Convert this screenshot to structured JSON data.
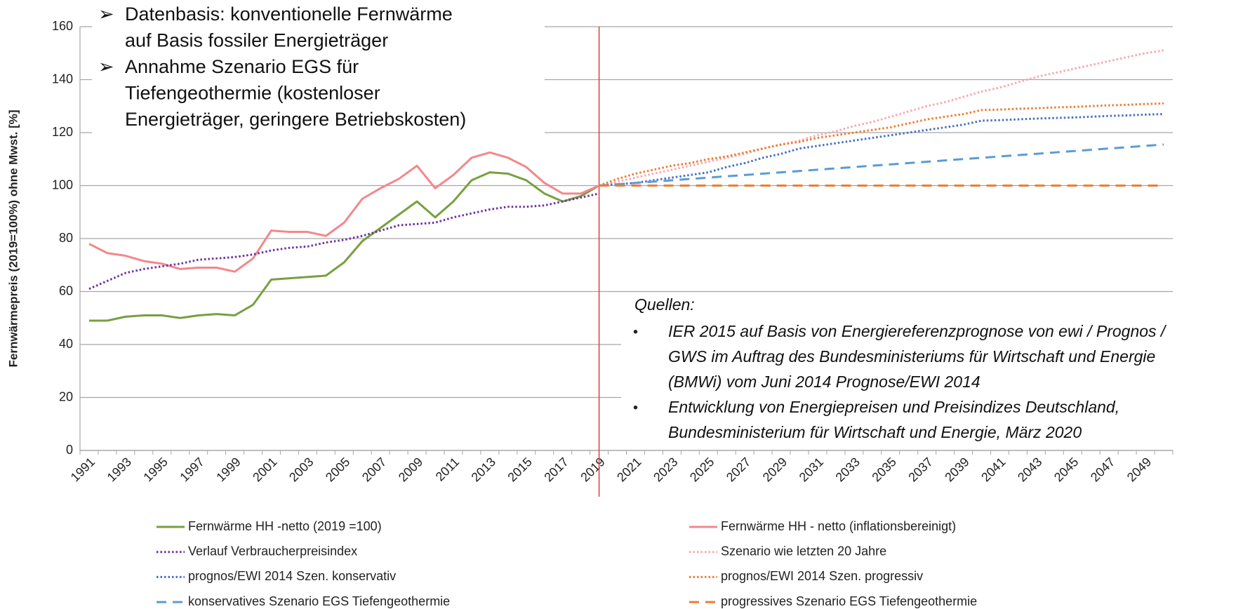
{
  "chart_data": {
    "type": "line",
    "y_label": "Fernwärmepreis (2019=100%) ohne Mwst. [%]",
    "annotation": {
      "bullets": [
        [
          "Datenbasis: konventionelle Fernwärme",
          "auf Basis fossiler Energieträger"
        ],
        [
          "Annahme Szenario EGS für",
          "Tiefengeothermie (kostenloser",
          "Energieträger, geringere Betriebskosten)"
        ]
      ]
    },
    "sources": {
      "title": "Quellen:",
      "items": [
        [
          "IER 2015 auf Basis von Energiereferenzprognose von ewi / Prognos /",
          "GWS im Auftrag des Bundesministeriums für Wirtschaft und Energie",
          "(BMWi) vom Juni 2014 Prognose/EWI 2014"
        ],
        [
          "Entwicklung von Energiepreisen und Preisindizes Deutschland,",
          "Bundesministerium für Wirtschaft und Energie, März 2020"
        ]
      ]
    },
    "categories": [
      "1991",
      null,
      "1993",
      null,
      "1995",
      null,
      "1997",
      null,
      "1999",
      null,
      "2001",
      null,
      "2003",
      null,
      "2005",
      null,
      "2007",
      null,
      "2009",
      null,
      "2011",
      null,
      "2013",
      null,
      "2015",
      null,
      "2017",
      null,
      "2019",
      null,
      "2021",
      null,
      "2023",
      null,
      "2025",
      null,
      "2027",
      null,
      "2029",
      null,
      "2031",
      null,
      "2033",
      null,
      "2035",
      null,
      "2037",
      null,
      "2039",
      null,
      "2041",
      null,
      "2043",
      null,
      "2045",
      null,
      "2047",
      null,
      "2049",
      null
    ],
    "reference_line": "2019",
    "ylim": [
      0,
      160
    ],
    "yticks": [
      0,
      20,
      40,
      60,
      80,
      100,
      120,
      140,
      160
    ],
    "grid": true,
    "series": [
      {
        "name": "Fernwärme HH -netto (2019 =100)",
        "color": "#77a03f",
        "style": "solid",
        "values": [
          49,
          49,
          50.5,
          51,
          51,
          50,
          51,
          51.5,
          51,
          55,
          64.5,
          65,
          65.5,
          66,
          71,
          79,
          84,
          89,
          94,
          88,
          94,
          102,
          105,
          104.5,
          102,
          97,
          94,
          96,
          100,
          null,
          null,
          null,
          null,
          null,
          null,
          null,
          null,
          null,
          null,
          null,
          null,
          null,
          null,
          null,
          null,
          null,
          null,
          null,
          null,
          null,
          null,
          null,
          null,
          null,
          null,
          null,
          null,
          null,
          null,
          null
        ]
      },
      {
        "name": "Fernwärme HH  - netto (inflationsbereinigt)",
        "color": "#f4878a",
        "style": "solid",
        "values": [
          78,
          74.5,
          73.5,
          71.5,
          70.5,
          68.5,
          69,
          69,
          67.5,
          72.5,
          83,
          82.5,
          82.5,
          81,
          86,
          95,
          99,
          102.5,
          107.5,
          99,
          104,
          110.5,
          112.5,
          110.5,
          107,
          101,
          97,
          97,
          100,
          null,
          null,
          null,
          null,
          null,
          null,
          null,
          null,
          null,
          null,
          null,
          null,
          null,
          null,
          null,
          null,
          null,
          null,
          null,
          null,
          null,
          null,
          null,
          null,
          null,
          null,
          null,
          null,
          null,
          null,
          null
        ]
      },
      {
        "name": "Verlauf Verbraucherpreisindex",
        "color": "#7030a0",
        "style": "dotted",
        "values": [
          61,
          64,
          67,
          68.5,
          69.5,
          70.5,
          72,
          72.5,
          73,
          74,
          75.5,
          76.5,
          77,
          78.5,
          79.5,
          81,
          83,
          85,
          85.5,
          86,
          88,
          89.5,
          91,
          92,
          92,
          92.5,
          94,
          95.5,
          97,
          null,
          null,
          null,
          null,
          null,
          null,
          null,
          null,
          null,
          null,
          null,
          null,
          null,
          null,
          null,
          null,
          null,
          null,
          null,
          null,
          null,
          null,
          null,
          null,
          null,
          null,
          null,
          null,
          null,
          null,
          null
        ]
      },
      {
        "name": "Szenario wie letzten 20 Jahre",
        "color": "#f7a8b4",
        "style": "dotted",
        "values": [
          null,
          null,
          null,
          null,
          null,
          null,
          null,
          null,
          null,
          null,
          null,
          null,
          null,
          null,
          null,
          null,
          null,
          null,
          null,
          null,
          null,
          null,
          null,
          null,
          null,
          null,
          null,
          null,
          100,
          101.5,
          103,
          104.5,
          106,
          107.5,
          109,
          110.5,
          112,
          114,
          115.5,
          117,
          119,
          120.5,
          122.5,
          124,
          126,
          128,
          130,
          131.5,
          133.5,
          135.5,
          137,
          139,
          141,
          142.5,
          144,
          145.5,
          147,
          148.5,
          150,
          151
        ]
      },
      {
        "name": "prognos/EWI 2014 Szen. konservativ",
        "color": "#4472c4",
        "style": "dotted",
        "values": [
          null,
          null,
          null,
          null,
          null,
          null,
          null,
          null,
          null,
          null,
          null,
          null,
          null,
          null,
          null,
          null,
          null,
          null,
          null,
          null,
          null,
          null,
          null,
          null,
          null,
          null,
          null,
          null,
          100,
          100.5,
          101,
          102,
          103,
          104,
          105,
          107,
          108.5,
          110.5,
          112,
          114,
          115,
          116,
          117,
          118,
          119,
          120,
          121,
          122,
          123,
          124.5,
          124.7,
          125,
          125.3,
          125.5,
          125.7,
          126,
          126.3,
          126.5,
          126.8,
          127
        ]
      },
      {
        "name": "prognos/EWI 2014 Szen. progressiv",
        "color": "#ed7d31",
        "style": "dotted",
        "values": [
          null,
          null,
          null,
          null,
          null,
          null,
          null,
          null,
          null,
          null,
          null,
          null,
          null,
          null,
          null,
          null,
          null,
          null,
          null,
          null,
          null,
          null,
          null,
          null,
          null,
          null,
          null,
          null,
          100,
          102.5,
          104.5,
          106,
          107.5,
          108.5,
          110,
          111,
          112.5,
          114,
          115.5,
          116.5,
          118,
          119,
          120,
          121,
          122,
          123.5,
          125,
          126,
          127,
          128.5,
          128.7,
          129,
          129.2,
          129.5,
          129.7,
          130,
          130.3,
          130.5,
          130.8,
          131
        ]
      },
      {
        "name": "konservatives Szenario EGS Tiefengeothermie",
        "color": "#5b9bd5",
        "style": "dashed",
        "values": [
          null,
          null,
          null,
          null,
          null,
          null,
          null,
          null,
          null,
          null,
          null,
          null,
          null,
          null,
          null,
          null,
          null,
          null,
          null,
          null,
          null,
          null,
          null,
          null,
          null,
          null,
          null,
          null,
          100,
          100.5,
          101,
          101.5,
          102,
          102.5,
          103,
          103.5,
          104,
          104.5,
          105,
          105.5,
          106,
          106.5,
          107,
          107.5,
          108,
          108.5,
          109,
          109.5,
          110,
          110.5,
          111,
          111.5,
          112,
          112.5,
          113,
          113.5,
          114,
          114.5,
          115,
          115.5
        ]
      },
      {
        "name": "progressives Szenario EGS Tiefengeothermie",
        "color": "#ed7d31",
        "style": "dashed",
        "values": [
          null,
          null,
          null,
          null,
          null,
          null,
          null,
          null,
          null,
          null,
          null,
          null,
          null,
          null,
          null,
          null,
          null,
          null,
          null,
          null,
          null,
          null,
          null,
          null,
          null,
          null,
          null,
          null,
          100,
          100,
          100,
          100,
          100,
          100,
          100,
          100,
          100,
          100,
          100,
          100,
          100,
          100,
          100,
          100,
          100,
          100,
          100,
          100,
          100,
          100,
          100,
          100,
          100,
          100,
          100,
          100,
          100,
          100,
          100,
          100
        ]
      }
    ]
  }
}
